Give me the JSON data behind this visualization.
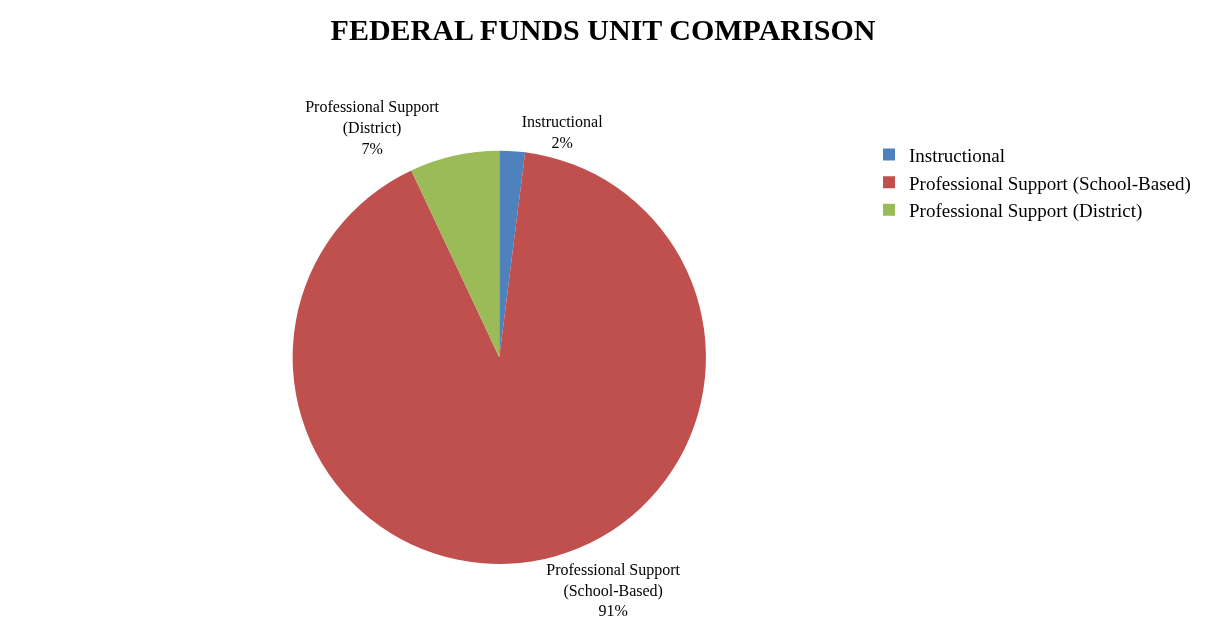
{
  "chart_data": {
    "type": "pie",
    "title": "FEDERAL FUNDS UNIT COMPARISON",
    "categories": [
      "Instructional",
      "Professional Support (School-Based)",
      "Professional Support (District)"
    ],
    "values": [
      2,
      91,
      7
    ],
    "value_labels": [
      "2%",
      "91%",
      "7%"
    ],
    "colors": [
      "#4f81bd",
      "#c0504d",
      "#9bbb59"
    ],
    "legend": "right"
  }
}
